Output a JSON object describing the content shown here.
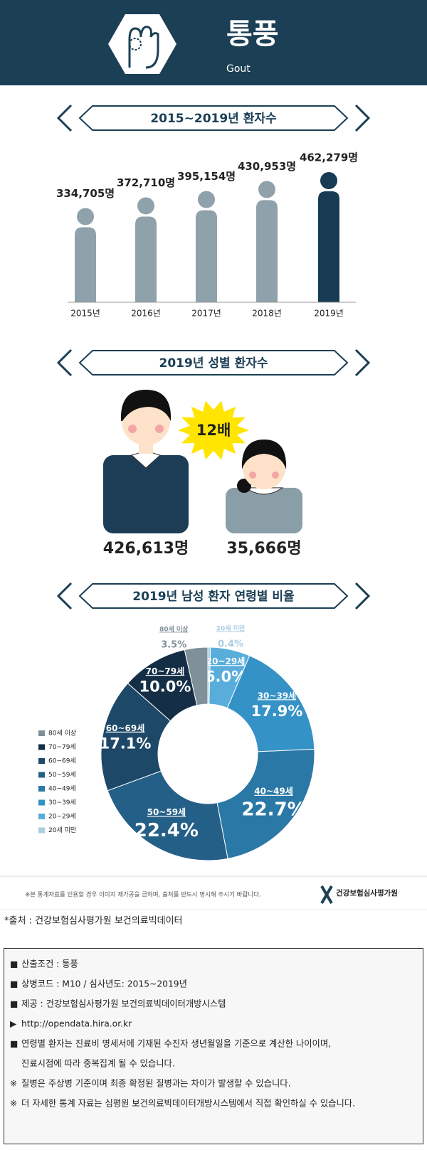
{
  "header": {
    "title": "통풍",
    "subtitle": "Gout"
  },
  "chart_data": [
    {
      "type": "bar",
      "title": "2015~2019년 환자수",
      "categories": [
        "2015년",
        "2016년",
        "2017년",
        "2018년",
        "2019년"
      ],
      "values": [
        334705,
        372710,
        395154,
        430953,
        462279
      ],
      "value_labels": [
        "334,705명",
        "372,710명",
        "395,154명",
        "430,953명",
        "462,279명"
      ],
      "colors": [
        "#8fa1aa",
        "#8fa1aa",
        "#8fa1aa",
        "#8fa1aa",
        "#173b52"
      ]
    },
    {
      "type": "pictogram",
      "title": "2019년 성별 환자수",
      "values": [
        426613,
        35666
      ],
      "value_labels": [
        "426,613명",
        "35,666명"
      ],
      "annotation": "12배",
      "colors": [
        "#1c3d55",
        "#8a9ea8"
      ]
    },
    {
      "type": "pie",
      "title": "2019년 남성 환자 연령별 비율",
      "categories": [
        "20세 미만",
        "20~29세",
        "30~39세",
        "40~49세",
        "50~59세",
        "60~69세",
        "70~79세",
        "80세 이상"
      ],
      "values": [
        0.4,
        6.0,
        17.9,
        22.7,
        22.4,
        17.1,
        10.0,
        3.5
      ],
      "value_labels": [
        "0.4%",
        "6.0%",
        "17.9%",
        "22.7%",
        "22.4%",
        "17.1%",
        "10.0%",
        "3.5%"
      ],
      "colors": [
        "#a9cfe2",
        "#58addb",
        "#3592c6",
        "#2a78a6",
        "#245f88",
        "#1d4868",
        "#142e45",
        "#7f9099"
      ],
      "donut": true,
      "legend": "left"
    }
  ],
  "notice": "※본 통계자료를 인용할 경우 이미지 재가공을 금하며, 출처를 반드시 명시해 주시기 바랍니다.",
  "logo": "건강보험심사평가원",
  "source": "*출처 : 건강보험심사평가원 보건의료빅데이터",
  "notes": [
    {
      "marker": "■",
      "lines": [
        "산출조건 : 통풍"
      ]
    },
    {
      "marker": "■",
      "lines": [
        "상병코드 : M10 / 심사년도: 2015~2019년"
      ]
    },
    {
      "marker": "■",
      "lines": [
        "제공 : 건강보험심사평가원 보건의료빅데이터개방시스템"
      ]
    },
    {
      "marker": "▶",
      "lines": [
        "http://opendata.hira.or.kr"
      ]
    },
    {
      "marker": "■",
      "lines": [
        "연령별 환자는 진료비 명세서에 기재된 수진자 생년월일을 기준으로 계산한 나이이며,",
        "진료시점에 따라 중복집계 될 수 있습니다."
      ]
    },
    {
      "marker": "※",
      "lines": [
        "질병은 주상병 기준이며 최종 확정된 질병과는 차이가 발생할 수 있습니다."
      ]
    },
    {
      "marker": "※",
      "lines": [
        "더 자세한 통계 자료는 심평원 보건의료빅데이터개방시스템에서 직접 확인하실 수 있습니다."
      ]
    }
  ]
}
